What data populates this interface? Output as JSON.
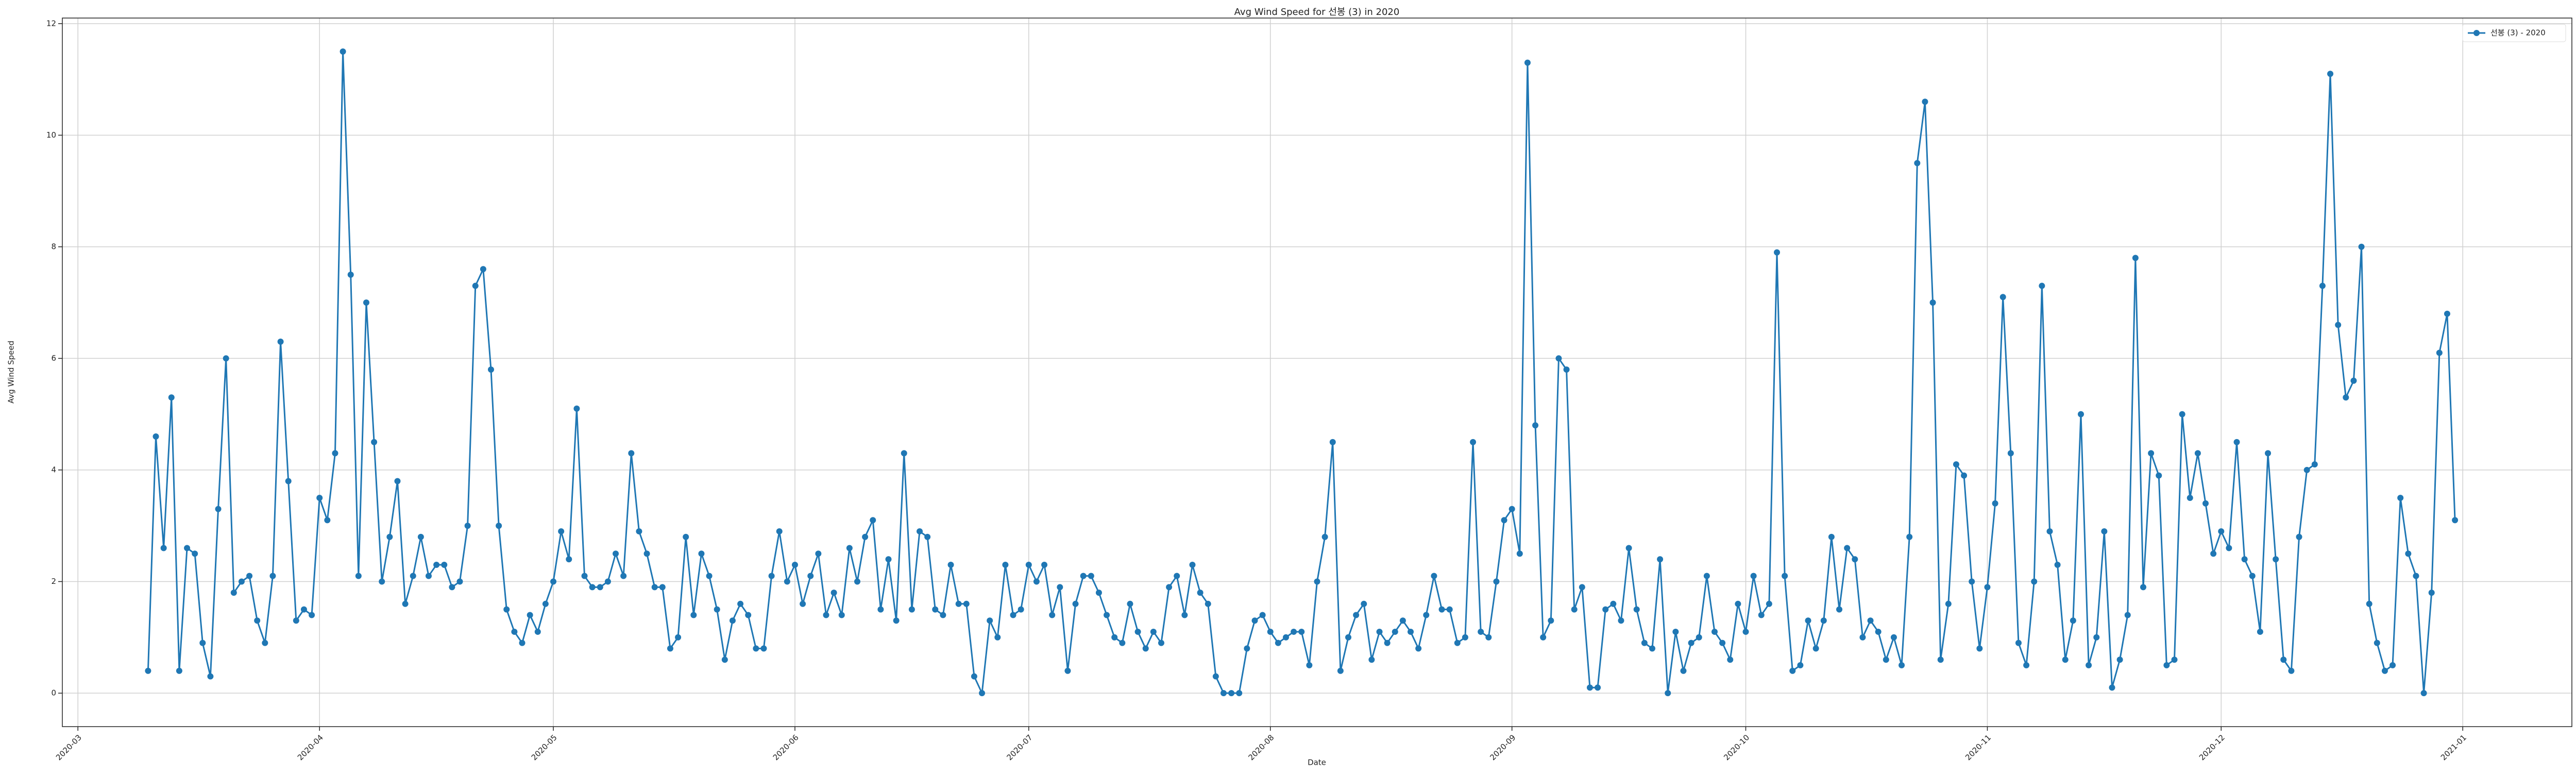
{
  "chart_data": {
    "type": "line",
    "title": "Avg Wind Speed for 선봉 (3) in 2020",
    "xlabel": "Date",
    "ylabel": "Avg Wind Speed",
    "grid": true,
    "legend": "upper right",
    "xlim": [
      "2020-02-28",
      "2021-01-15"
    ],
    "xticks": [
      {
        "value": "2020-03-01",
        "label": "2020-03"
      },
      {
        "value": "2020-04-01",
        "label": "2020-04"
      },
      {
        "value": "2020-05-01",
        "label": "2020-05"
      },
      {
        "value": "2020-06-01",
        "label": "2020-06"
      },
      {
        "value": "2020-07-01",
        "label": "2020-07"
      },
      {
        "value": "2020-08-01",
        "label": "2020-08"
      },
      {
        "value": "2020-09-01",
        "label": "2020-09"
      },
      {
        "value": "2020-10-01",
        "label": "2020-10"
      },
      {
        "value": "2020-11-01",
        "label": "2020-11"
      },
      {
        "value": "2020-12-01",
        "label": "2020-12"
      },
      {
        "value": "2021-01-01",
        "label": "2021-01"
      }
    ],
    "ylim": [
      -0.6,
      12.1
    ],
    "yticks": [
      0,
      2,
      4,
      6,
      8,
      10,
      12
    ],
    "x": [
      "2020-03-10",
      "2020-03-11",
      "2020-03-12",
      "2020-03-13",
      "2020-03-14",
      "2020-03-15",
      "2020-03-16",
      "2020-03-17",
      "2020-03-18",
      "2020-03-19",
      "2020-03-20",
      "2020-03-21",
      "2020-03-22",
      "2020-03-23",
      "2020-03-24",
      "2020-03-25",
      "2020-03-26",
      "2020-03-27",
      "2020-03-28",
      "2020-03-29",
      "2020-03-30",
      "2020-03-31",
      "2020-04-01",
      "2020-04-02",
      "2020-04-03",
      "2020-04-04",
      "2020-04-05",
      "2020-04-06",
      "2020-04-07",
      "2020-04-08",
      "2020-04-09",
      "2020-04-10",
      "2020-04-11",
      "2020-04-12",
      "2020-04-13",
      "2020-04-14",
      "2020-04-15",
      "2020-04-16",
      "2020-04-17",
      "2020-04-18",
      "2020-04-19",
      "2020-04-20",
      "2020-04-21",
      "2020-04-22",
      "2020-04-23",
      "2020-04-24",
      "2020-04-25",
      "2020-04-26",
      "2020-04-27",
      "2020-04-28",
      "2020-04-29",
      "2020-04-30",
      "2020-05-01",
      "2020-05-02",
      "2020-05-03",
      "2020-05-04",
      "2020-05-05",
      "2020-05-06",
      "2020-05-07",
      "2020-05-08",
      "2020-05-09",
      "2020-05-10",
      "2020-05-11",
      "2020-05-12",
      "2020-05-13",
      "2020-05-14",
      "2020-05-15",
      "2020-05-16",
      "2020-05-17",
      "2020-05-18",
      "2020-05-19",
      "2020-05-20",
      "2020-05-21",
      "2020-05-22",
      "2020-05-23",
      "2020-05-24",
      "2020-05-25",
      "2020-05-26",
      "2020-05-27",
      "2020-05-28",
      "2020-05-29",
      "2020-05-30",
      "2020-05-31",
      "2020-06-01",
      "2020-06-02",
      "2020-06-03",
      "2020-06-04",
      "2020-06-05",
      "2020-06-06",
      "2020-06-07",
      "2020-06-08",
      "2020-06-09",
      "2020-06-10",
      "2020-06-11",
      "2020-06-12",
      "2020-06-13",
      "2020-06-14",
      "2020-06-15",
      "2020-06-16",
      "2020-06-17",
      "2020-06-18",
      "2020-06-19",
      "2020-06-20",
      "2020-06-21",
      "2020-06-22",
      "2020-06-23",
      "2020-06-24",
      "2020-06-25",
      "2020-06-26",
      "2020-06-27",
      "2020-06-28",
      "2020-06-29",
      "2020-06-30",
      "2020-07-01",
      "2020-07-02",
      "2020-07-03",
      "2020-07-04",
      "2020-07-05",
      "2020-07-06",
      "2020-07-07",
      "2020-07-08",
      "2020-07-09",
      "2020-07-10",
      "2020-07-11",
      "2020-07-12",
      "2020-07-13",
      "2020-07-14",
      "2020-07-15",
      "2020-07-16",
      "2020-07-17",
      "2020-07-18",
      "2020-07-19",
      "2020-07-20",
      "2020-07-21",
      "2020-07-22",
      "2020-07-23",
      "2020-07-24",
      "2020-07-25",
      "2020-07-26",
      "2020-07-27",
      "2020-07-28",
      "2020-07-29",
      "2020-07-30",
      "2020-07-31",
      "2020-08-01",
      "2020-08-02",
      "2020-08-03",
      "2020-08-04",
      "2020-08-05",
      "2020-08-06",
      "2020-08-07",
      "2020-08-08",
      "2020-08-09",
      "2020-08-10",
      "2020-08-11",
      "2020-08-12",
      "2020-08-13",
      "2020-08-14",
      "2020-08-15",
      "2020-08-16",
      "2020-08-17",
      "2020-08-18",
      "2020-08-19",
      "2020-08-20",
      "2020-08-21",
      "2020-08-22",
      "2020-08-23",
      "2020-08-24",
      "2020-08-25",
      "2020-08-26",
      "2020-08-27",
      "2020-08-28",
      "2020-08-29",
      "2020-08-30",
      "2020-08-31",
      "2020-09-01",
      "2020-09-02",
      "2020-09-03",
      "2020-09-04",
      "2020-09-05",
      "2020-09-06",
      "2020-09-07",
      "2020-09-08",
      "2020-09-09",
      "2020-09-10",
      "2020-09-11",
      "2020-09-12",
      "2020-09-13",
      "2020-09-14",
      "2020-09-15",
      "2020-09-16",
      "2020-09-17",
      "2020-09-18",
      "2020-09-19",
      "2020-09-20",
      "2020-09-21",
      "2020-09-22",
      "2020-09-23",
      "2020-09-24",
      "2020-09-25",
      "2020-09-26",
      "2020-09-27",
      "2020-09-28",
      "2020-09-29",
      "2020-09-30",
      "2020-10-01",
      "2020-10-02",
      "2020-10-03",
      "2020-10-04",
      "2020-10-05",
      "2020-10-06",
      "2020-10-07",
      "2020-10-08",
      "2020-10-09",
      "2020-10-10",
      "2020-10-11",
      "2020-10-12",
      "2020-10-13",
      "2020-10-14",
      "2020-10-15",
      "2020-10-16",
      "2020-10-17",
      "2020-10-18",
      "2020-10-19",
      "2020-10-20",
      "2020-10-21",
      "2020-10-22",
      "2020-10-23",
      "2020-10-24",
      "2020-10-25",
      "2020-10-26",
      "2020-10-27",
      "2020-10-28",
      "2020-10-29",
      "2020-10-30",
      "2020-10-31",
      "2020-11-01",
      "2020-11-02",
      "2020-11-03",
      "2020-11-04",
      "2020-11-05",
      "2020-11-06",
      "2020-11-07",
      "2020-11-08",
      "2020-11-09",
      "2020-11-10",
      "2020-11-11",
      "2020-11-12",
      "2020-11-13",
      "2020-11-14",
      "2020-11-15",
      "2020-11-16",
      "2020-11-17",
      "2020-11-18",
      "2020-11-19",
      "2020-11-20",
      "2020-11-21",
      "2020-11-22",
      "2020-11-23",
      "2020-11-24",
      "2020-11-25",
      "2020-11-26",
      "2020-11-27",
      "2020-11-28",
      "2020-11-29",
      "2020-11-30",
      "2020-12-01",
      "2020-12-02",
      "2020-12-03",
      "2020-12-04",
      "2020-12-05",
      "2020-12-06",
      "2020-12-07",
      "2020-12-08",
      "2020-12-09",
      "2020-12-10",
      "2020-12-11",
      "2020-12-12",
      "2020-12-13",
      "2020-12-14",
      "2020-12-15",
      "2020-12-16",
      "2020-12-17",
      "2020-12-18",
      "2020-12-19",
      "2020-12-20",
      "2020-12-21",
      "2020-12-22",
      "2020-12-23",
      "2020-12-24",
      "2020-12-25",
      "2020-12-26",
      "2020-12-27",
      "2020-12-28",
      "2020-12-29",
      "2020-12-30",
      "2020-12-31"
    ],
    "series": [
      {
        "name": "선봉 (3) - 2020",
        "color": "#1f77b4",
        "values": [
          0.4,
          4.6,
          2.6,
          5.3,
          0.4,
          2.6,
          2.5,
          0.9,
          0.3,
          3.3,
          6.0,
          1.8,
          2.0,
          2.1,
          1.3,
          0.9,
          2.1,
          6.3,
          3.8,
          1.3,
          1.5,
          1.4,
          3.5,
          3.1,
          4.3,
          11.5,
          7.5,
          2.1,
          7.0,
          4.5,
          2.0,
          2.8,
          3.8,
          1.6,
          2.1,
          2.8,
          2.1,
          2.3,
          2.3,
          1.9,
          2.0,
          3.0,
          7.3,
          7.6,
          5.8,
          3.0,
          1.5,
          1.1,
          0.9,
          1.4,
          1.1,
          1.6,
          2.0,
          2.9,
          2.4,
          5.1,
          2.1,
          1.9,
          1.9,
          2.0,
          2.5,
          2.1,
          4.3,
          2.9,
          2.5,
          1.9,
          1.9,
          0.8,
          1.0,
          2.8,
          1.4,
          2.5,
          2.1,
          1.5,
          0.6,
          1.3,
          1.6,
          1.4,
          0.8,
          0.8,
          2.1,
          2.9,
          2.0,
          2.3,
          1.6,
          2.1,
          2.5,
          1.4,
          1.8,
          1.4,
          2.6,
          2.0,
          2.8,
          3.1,
          1.5,
          2.4,
          1.3,
          4.3,
          1.5,
          2.9,
          2.8,
          1.5,
          1.4,
          2.3,
          1.6,
          1.6,
          0.3,
          0.0,
          1.3,
          1.0,
          2.3,
          1.4,
          1.5,
          2.3,
          2.0,
          2.3,
          1.4,
          1.9,
          0.4,
          1.6,
          2.1,
          2.1,
          1.8,
          1.4,
          1.0,
          0.9,
          1.6,
          1.1,
          0.8,
          1.1,
          0.9,
          1.9,
          2.1,
          1.4,
          2.3,
          1.8,
          1.6,
          0.3,
          0.0,
          0.0,
          0.0,
          0.8,
          1.3,
          1.4,
          1.1,
          0.9,
          1.0,
          1.1,
          1.1,
          0.5,
          2.0,
          2.8,
          4.5,
          0.4,
          1.0,
          1.4,
          1.6,
          0.6,
          1.1,
          0.9,
          1.1,
          1.3,
          1.1,
          0.8,
          1.4,
          2.1,
          1.5,
          1.5,
          0.9,
          1.0,
          4.5,
          1.1,
          1.0,
          2.0,
          3.1,
          3.3,
          2.5,
          11.3,
          4.8,
          1.0,
          1.3,
          6.0,
          5.8,
          1.5,
          1.9,
          0.1,
          0.1,
          1.5,
          1.6,
          1.3,
          2.6,
          1.5,
          0.9,
          0.8,
          2.4,
          0.0,
          1.1,
          0.4,
          0.9,
          1.0,
          2.1,
          1.1,
          0.9,
          0.6,
          1.6,
          1.1,
          2.1,
          1.4,
          1.6,
          7.9,
          2.1,
          0.4,
          0.5,
          1.3,
          0.8,
          1.3,
          2.8,
          1.5,
          2.6,
          2.4,
          1.0,
          1.3,
          1.1,
          0.6,
          1.0,
          0.5,
          2.8,
          9.5,
          10.6,
          7.0,
          0.6,
          1.6,
          4.1,
          3.9,
          2.0,
          0.8,
          1.9,
          3.4,
          7.1,
          4.3,
          0.9,
          0.5,
          2.0,
          7.3,
          2.9,
          2.3,
          0.6,
          1.3,
          5.0,
          0.5,
          1.0,
          2.9,
          0.1,
          0.6,
          1.4,
          7.8,
          1.9,
          4.3,
          3.9,
          0.5,
          0.6,
          5.0,
          3.5,
          4.3,
          3.4,
          2.5,
          2.9,
          2.6,
          4.5,
          2.4,
          2.1,
          1.1,
          4.3,
          2.4,
          0.6,
          0.4,
          2.8,
          4.0,
          4.1,
          7.3,
          11.1,
          6.6,
          5.3,
          5.6,
          8.0,
          1.6,
          0.9,
          0.4,
          0.5,
          3.5,
          2.5,
          2.1,
          0.0,
          1.8,
          6.1,
          6.8,
          3.1
        ]
      }
    ]
  }
}
